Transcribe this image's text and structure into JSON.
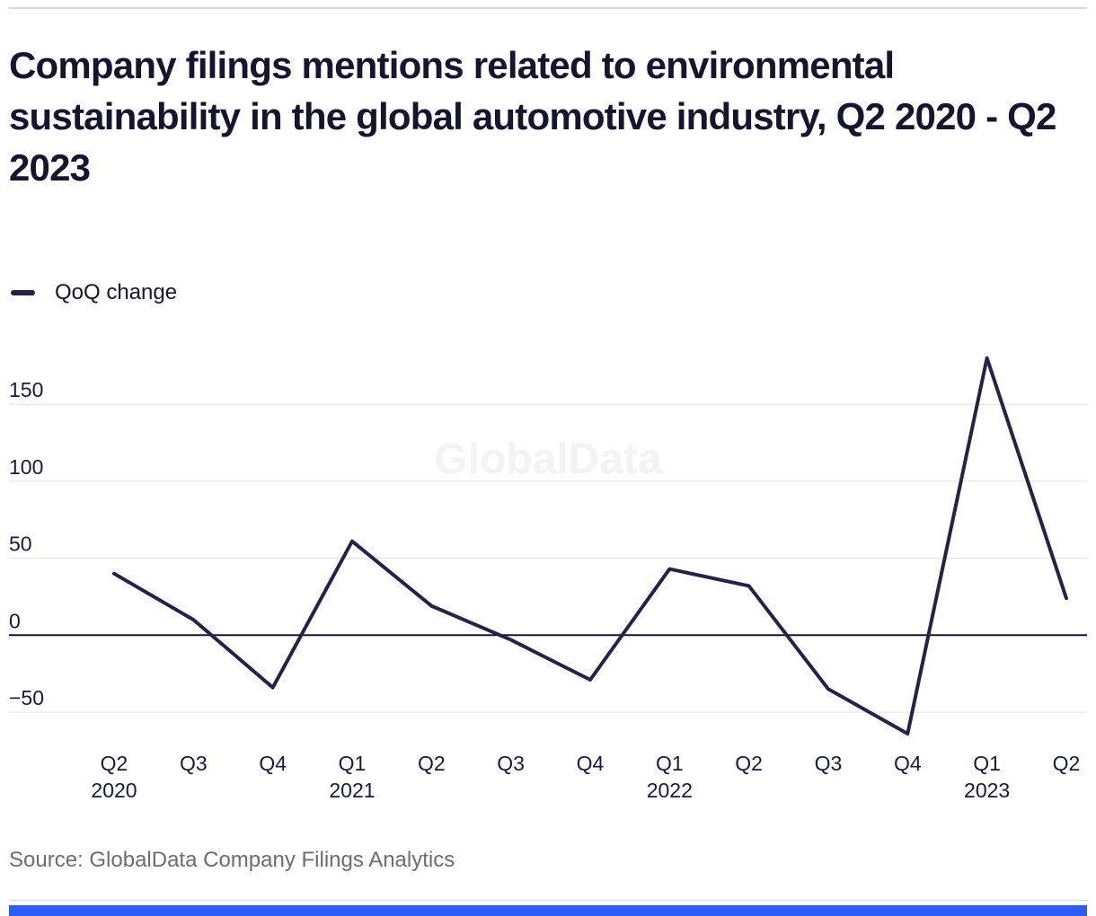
{
  "header": {
    "title": "Company filings mentions related to environmental sustainability in the global automotive industry, Q2 2020 - Q2 2023"
  },
  "legend": {
    "label": "QoQ change"
  },
  "watermark": {
    "text": "GlobalData"
  },
  "footer": {
    "source": "Source: GlobalData Company Filings Analytics"
  },
  "colors": {
    "accent_line": "#262247",
    "heading_text": "#16142e",
    "axis_text": "#1b1939",
    "gridline": "#e1e1e1",
    "zero_line": "#16142e",
    "watermark": "#f3f3f3",
    "source_text": "#6d6d6d",
    "bottom_bar": "#2f5cf6",
    "divider": "#d8d8d8"
  },
  "chart_data": {
    "type": "line",
    "title": "Company filings mentions related to environmental sustainability in the global automotive industry, Q2 2020 - Q2 2023",
    "categories": [
      "Q2 2020",
      "Q3 2020",
      "Q4 2020",
      "Q1 2021",
      "Q2 2021",
      "Q3 2021",
      "Q4 2021",
      "Q1 2022",
      "Q2 2022",
      "Q3 2022",
      "Q4 2022",
      "Q1 2023",
      "Q2 2023"
    ],
    "x_ticks": [
      {
        "q": "Q2",
        "year": "2020"
      },
      {
        "q": "Q3"
      },
      {
        "q": "Q4"
      },
      {
        "q": "Q1",
        "year": "2021"
      },
      {
        "q": "Q2"
      },
      {
        "q": "Q3"
      },
      {
        "q": "Q4"
      },
      {
        "q": "Q1",
        "year": "2022"
      },
      {
        "q": "Q2"
      },
      {
        "q": "Q3"
      },
      {
        "q": "Q4"
      },
      {
        "q": "Q1",
        "year": "2023"
      },
      {
        "q": "Q2"
      }
    ],
    "series": [
      {
        "name": "QoQ change",
        "values": [
          40,
          10,
          -34,
          61,
          19,
          -3,
          -29,
          43,
          32,
          -35,
          -64,
          180,
          24
        ]
      }
    ],
    "y_ticks": [
      {
        "value": 150,
        "label": "150"
      },
      {
        "value": 100,
        "label": "100"
      },
      {
        "value": 50,
        "label": "50"
      },
      {
        "value": 0,
        "label": "0"
      },
      {
        "value": -50,
        "label": "−50"
      }
    ],
    "ylim": [
      -80,
      190
    ],
    "xlabel": "",
    "ylabel": "",
    "grid": "horizontal",
    "legend_position": "top-left"
  }
}
